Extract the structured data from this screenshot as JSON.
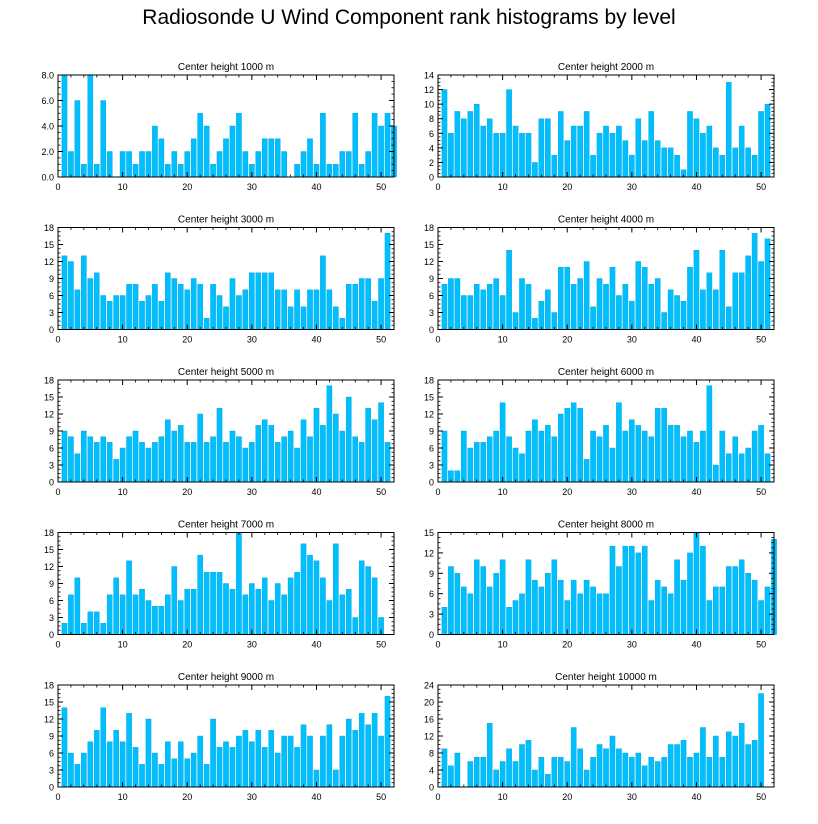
{
  "title": "Radiosonde U Wind Component rank histograms by level",
  "colors": {
    "bar": "#00BFFF",
    "bar_edge": "#00A0D8",
    "axis": "#000000"
  },
  "chart_data": [
    {
      "type": "bar",
      "title": "Center height 1000 m",
      "xlim": [
        0,
        52
      ],
      "ylim": [
        0,
        8
      ],
      "xticks": [
        0,
        10,
        20,
        30,
        40,
        50
      ],
      "yticks": [
        0,
        2,
        4,
        6,
        8
      ],
      "ytick_labels": [
        "0.0",
        "2.0",
        "4.0",
        "6.0",
        "8.0"
      ],
      "values": [
        8,
        2,
        6,
        1,
        8,
        1,
        6,
        2,
        0,
        2,
        2,
        1,
        2,
        2,
        4,
        3,
        1,
        2,
        1,
        2,
        3,
        5,
        4,
        1,
        2,
        3,
        4,
        5,
        2,
        1,
        2,
        3,
        3,
        3,
        2,
        0,
        1,
        2,
        3,
        1,
        5,
        1,
        1,
        2,
        2,
        5,
        1,
        2,
        5,
        4,
        5,
        4
      ]
    },
    {
      "type": "bar",
      "title": "Center height 2000 m",
      "xlim": [
        0,
        52
      ],
      "ylim": [
        0,
        14
      ],
      "xticks": [
        0,
        10,
        20,
        30,
        40,
        50
      ],
      "yticks": [
        0,
        2,
        4,
        6,
        8,
        10,
        12,
        14
      ],
      "ytick_labels": [
        "0",
        "2",
        "4",
        "6",
        "8",
        "10",
        "12",
        "14"
      ],
      "values": [
        12,
        6,
        9,
        8,
        9,
        10,
        7,
        8,
        6,
        6,
        12,
        7,
        6,
        6,
        2,
        8,
        8,
        3,
        9,
        5,
        7,
        7,
        9,
        3,
        6,
        7,
        6,
        7,
        5,
        3,
        8,
        5,
        9,
        5,
        4,
        4,
        3,
        1,
        9,
        8,
        6,
        7,
        4,
        3,
        13,
        4,
        7,
        4,
        3,
        9,
        10,
        0
      ]
    },
    {
      "type": "bar",
      "title": "Center height 3000 m",
      "xlim": [
        0,
        52
      ],
      "ylim": [
        0,
        18
      ],
      "xticks": [
        0,
        10,
        20,
        30,
        40,
        50
      ],
      "yticks": [
        0,
        3,
        6,
        9,
        12,
        15,
        18
      ],
      "ytick_labels": [
        "0",
        "3",
        "6",
        "9",
        "12",
        "15",
        "18"
      ],
      "values": [
        13,
        12,
        7,
        13,
        9,
        10,
        6,
        5,
        6,
        6,
        8,
        8,
        5,
        6,
        8,
        5,
        10,
        9,
        8,
        7,
        9,
        8,
        2,
        8,
        6,
        4,
        9,
        6,
        7,
        10,
        10,
        10,
        10,
        7,
        7,
        4,
        7,
        4,
        7,
        7,
        13,
        7,
        4,
        2,
        8,
        8,
        9,
        9,
        5,
        9,
        17,
        0
      ]
    },
    {
      "type": "bar",
      "title": "Center height 4000 m",
      "xlim": [
        0,
        52
      ],
      "ylim": [
        0,
        18
      ],
      "xticks": [
        0,
        10,
        20,
        30,
        40,
        50
      ],
      "yticks": [
        0,
        3,
        6,
        9,
        12,
        15,
        18
      ],
      "ytick_labels": [
        "0",
        "3",
        "6",
        "9",
        "12",
        "15",
        "18"
      ],
      "values": [
        8,
        9,
        9,
        6,
        6,
        8,
        7,
        8,
        9,
        6,
        14,
        3,
        9,
        8,
        2,
        5,
        7,
        3,
        11,
        11,
        8,
        9,
        12,
        4,
        9,
        8,
        11,
        6,
        8,
        5,
        12,
        11,
        8,
        9,
        3,
        7,
        6,
        5,
        11,
        14,
        7,
        10,
        7,
        14,
        4,
        10,
        10,
        13,
        17,
        12,
        16,
        0
      ]
    },
    {
      "type": "bar",
      "title": "Center height 5000 m",
      "xlim": [
        0,
        52
      ],
      "ylim": [
        0,
        18
      ],
      "xticks": [
        0,
        10,
        20,
        30,
        40,
        50
      ],
      "yticks": [
        0,
        3,
        6,
        9,
        12,
        15,
        18
      ],
      "ytick_labels": [
        "0",
        "3",
        "6",
        "9",
        "12",
        "15",
        "18"
      ],
      "values": [
        9,
        8,
        5,
        9,
        8,
        7,
        8,
        7,
        4,
        6,
        8,
        9,
        7,
        6,
        7,
        8,
        11,
        9,
        10,
        7,
        7,
        12,
        7,
        8,
        13,
        7,
        9,
        8,
        6,
        7,
        10,
        11,
        10,
        7,
        8,
        9,
        6,
        11,
        8,
        13,
        10,
        17,
        12,
        9,
        15,
        8,
        7,
        13,
        11,
        14,
        7,
        0
      ]
    },
    {
      "type": "bar",
      "title": "Center height 6000 m",
      "xlim": [
        0,
        52
      ],
      "ylim": [
        0,
        18
      ],
      "xticks": [
        0,
        10,
        20,
        30,
        40,
        50
      ],
      "yticks": [
        0,
        3,
        6,
        9,
        12,
        15,
        18
      ],
      "ytick_labels": [
        "0",
        "3",
        "6",
        "9",
        "12",
        "15",
        "18"
      ],
      "values": [
        9,
        2,
        2,
        9,
        6,
        7,
        7,
        8,
        9,
        14,
        8,
        6,
        5,
        9,
        11,
        9,
        10,
        8,
        12,
        13,
        14,
        13,
        4,
        9,
        8,
        10,
        6,
        14,
        9,
        11,
        10,
        9,
        8,
        13,
        13,
        10,
        10,
        8,
        9,
        7,
        9,
        17,
        3,
        9,
        5,
        8,
        5,
        6,
        9,
        10,
        5,
        0
      ]
    },
    {
      "type": "bar",
      "title": "Center height 7000 m",
      "xlim": [
        0,
        52
      ],
      "ylim": [
        0,
        18
      ],
      "xticks": [
        0,
        10,
        20,
        30,
        40,
        50
      ],
      "yticks": [
        0,
        3,
        6,
        9,
        12,
        15,
        18
      ],
      "ytick_labels": [
        "0",
        "3",
        "6",
        "9",
        "12",
        "15",
        "18"
      ],
      "values": [
        2,
        7,
        10,
        2,
        4,
        4,
        2,
        7,
        10,
        7,
        13,
        7,
        8,
        6,
        5,
        5,
        7,
        12,
        6,
        8,
        8,
        14,
        11,
        11,
        11,
        9,
        8,
        18,
        7,
        9,
        8,
        10,
        6,
        9,
        7,
        10,
        11,
        16,
        14,
        13,
        10,
        6,
        16,
        7,
        8,
        3,
        13,
        12,
        10,
        3,
        0,
        0
      ]
    },
    {
      "type": "bar",
      "title": "Center height 8000 m",
      "xlim": [
        0,
        52
      ],
      "ylim": [
        0,
        15
      ],
      "xticks": [
        0,
        10,
        20,
        30,
        40,
        50
      ],
      "yticks": [
        0,
        3,
        6,
        9,
        12,
        15
      ],
      "ytick_labels": [
        "0",
        "3",
        "6",
        "9",
        "12",
        "15"
      ],
      "values": [
        4,
        10,
        9,
        7,
        6,
        11,
        10,
        7,
        9,
        11,
        4,
        5,
        6,
        11,
        8,
        7,
        9,
        11,
        8,
        5,
        8,
        6,
        8,
        7,
        6,
        6,
        13,
        10,
        13,
        13,
        12,
        13,
        5,
        8,
        7,
        6,
        11,
        8,
        12,
        15,
        13,
        5,
        7,
        7,
        10,
        10,
        11,
        9,
        8,
        5,
        7,
        14
      ]
    },
    {
      "type": "bar",
      "title": "Center height 9000 m",
      "xlim": [
        0,
        52
      ],
      "ylim": [
        0,
        18
      ],
      "xticks": [
        0,
        10,
        20,
        30,
        40,
        50
      ],
      "yticks": [
        0,
        3,
        6,
        9,
        12,
        15,
        18
      ],
      "ytick_labels": [
        "0",
        "3",
        "6",
        "9",
        "12",
        "15",
        "18"
      ],
      "values": [
        14,
        6,
        4,
        6,
        8,
        10,
        14,
        8,
        10,
        8,
        13,
        7,
        4,
        12,
        6,
        4,
        8,
        5,
        8,
        5,
        6,
        9,
        4,
        12,
        7,
        8,
        7,
        9,
        10,
        8,
        10,
        7,
        10,
        6,
        9,
        9,
        7,
        11,
        9,
        3,
        9,
        11,
        3,
        9,
        12,
        10,
        13,
        11,
        13,
        9,
        16,
        0
      ]
    },
    {
      "type": "bar",
      "title": "Center height 10000 m",
      "xlim": [
        0,
        52
      ],
      "ylim": [
        0,
        24
      ],
      "xticks": [
        0,
        10,
        20,
        30,
        40,
        50
      ],
      "yticks": [
        0,
        4,
        8,
        12,
        16,
        20,
        24
      ],
      "ytick_labels": [
        "0",
        "4",
        "8",
        "12",
        "16",
        "20",
        "24"
      ],
      "values": [
        9,
        5,
        8,
        0,
        6,
        7,
        7,
        15,
        4,
        6,
        9,
        6,
        10,
        11,
        4,
        7,
        3,
        7,
        7,
        6,
        14,
        9,
        4,
        7,
        10,
        9,
        12,
        9,
        8,
        7,
        8,
        5,
        7,
        6,
        7,
        10,
        10,
        11,
        7,
        8,
        14,
        7,
        12,
        7,
        13,
        12,
        15,
        10,
        11,
        22,
        0,
        0
      ]
    }
  ]
}
